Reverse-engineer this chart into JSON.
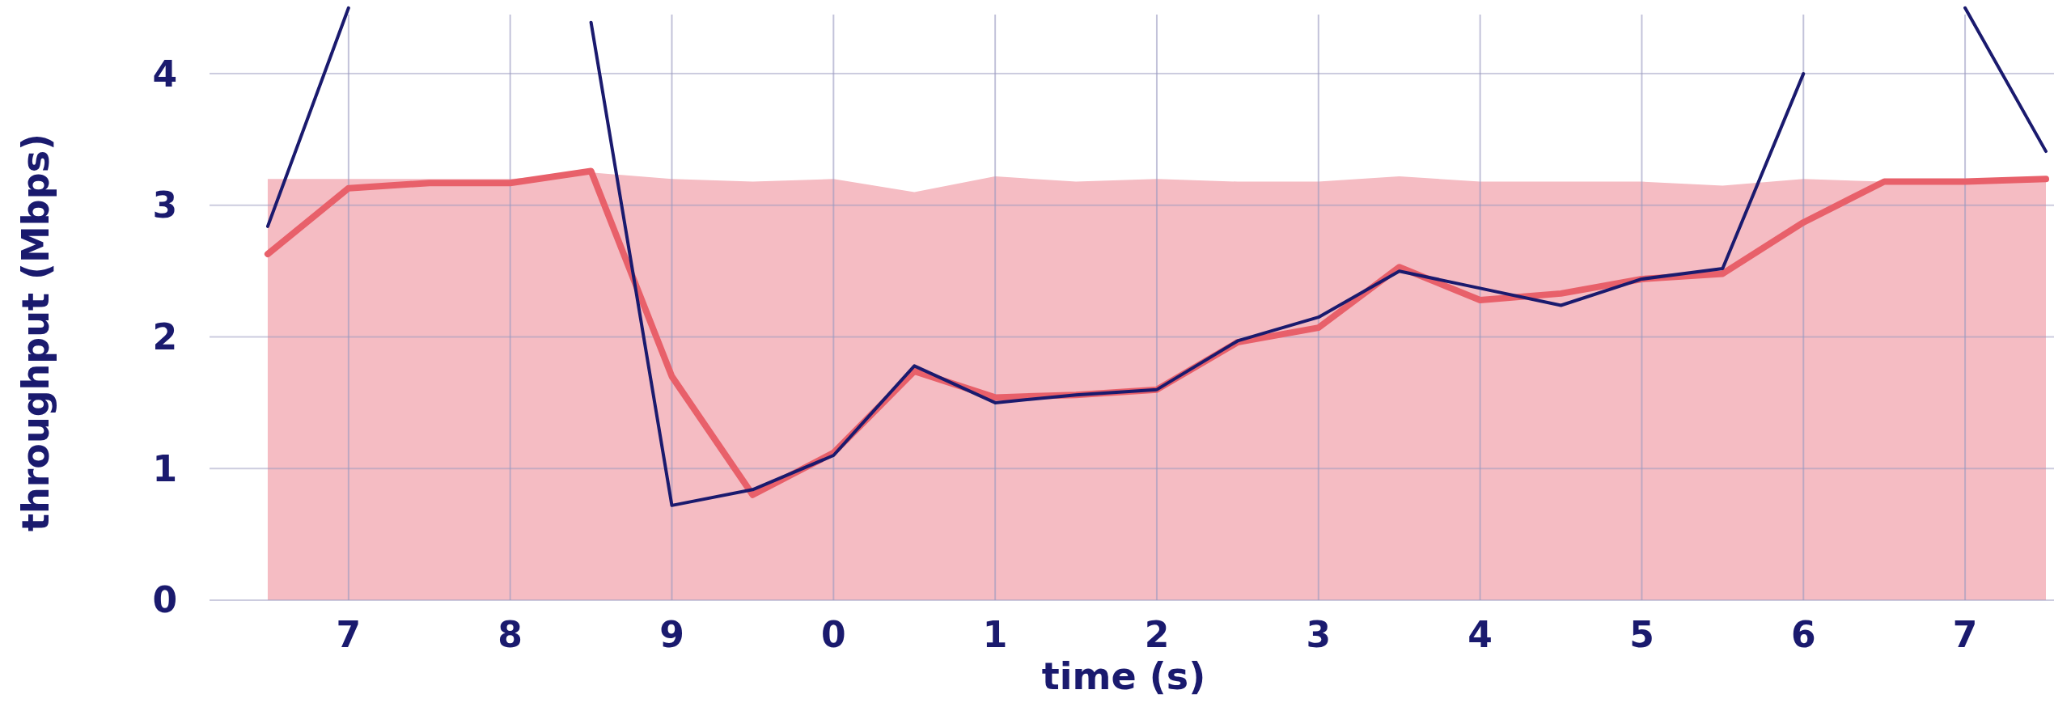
{
  "chart_data": {
    "type": "line",
    "xlabel": "time (s)",
    "ylabel": "throughput (Mbps)",
    "categories": [
      null,
      "7",
      null,
      "8",
      null,
      "9",
      null,
      "0",
      null,
      "1",
      null,
      "2",
      null,
      "3",
      null,
      "4",
      null,
      "5",
      null,
      "6",
      null,
      "7",
      null
    ],
    "ylim": [
      0,
      4.56
    ],
    "yticks": [
      0,
      1,
      2,
      3,
      4
    ],
    "grid": true,
    "series": [
      {
        "type": "area",
        "color": "#f5bcc3",
        "values": [
          3.2,
          3.2,
          3.2,
          3.2,
          3.25,
          3.2,
          3.18,
          3.2,
          3.1,
          3.22,
          3.18,
          3.2,
          3.18,
          3.18,
          3.22,
          3.18,
          3.18,
          3.18,
          3.15,
          3.2,
          3.18,
          3.18,
          3.2
        ]
      },
      {
        "color": "#e8606a",
        "values": [
          2.63,
          3.13,
          3.17,
          3.17,
          3.26,
          1.7,
          0.8,
          1.12,
          1.74,
          1.54,
          1.56,
          1.6,
          1.96,
          2.07,
          2.53,
          2.28,
          2.33,
          2.44,
          2.48,
          2.87,
          3.18,
          3.18,
          3.2
        ]
      },
      {
        "color": "#1a1a6e",
        "values": [
          2.84,
          4.5,
          null,
          null,
          4.39,
          0.72,
          0.84,
          1.1,
          1.78,
          1.5,
          1.56,
          1.6,
          1.97,
          2.15,
          2.5,
          2.37,
          2.24,
          2.44,
          2.52,
          4.0,
          null,
          4.5,
          3.41
        ]
      }
    ]
  }
}
